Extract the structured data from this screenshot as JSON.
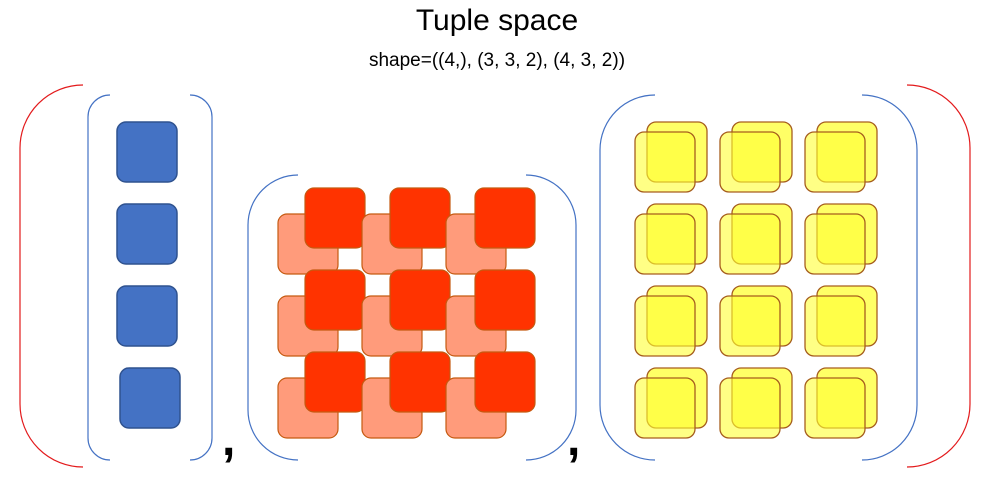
{
  "title": "Tuple space",
  "subtitle": "shape=((4,), (3, 3, 2), (4, 3, 2))",
  "separators": [
    ",",
    ","
  ],
  "colors": {
    "outer_paren": "#e31a1c",
    "inner_paren": "#4472c4",
    "vector_fill": "#4472c4",
    "vector_stroke": "#2f528f",
    "red_front": "#ff3300",
    "red_back": "#ff9b7b",
    "red_stroke": "#c55a11",
    "yellow_fill": "#ffff33",
    "yellow_stroke": "#a65e1e"
  },
  "components": [
    {
      "name": "vector",
      "shape": [
        4
      ]
    },
    {
      "name": "grid",
      "shape": [
        3,
        3,
        2
      ]
    },
    {
      "name": "block",
      "shape": [
        4,
        3,
        2
      ]
    }
  ]
}
